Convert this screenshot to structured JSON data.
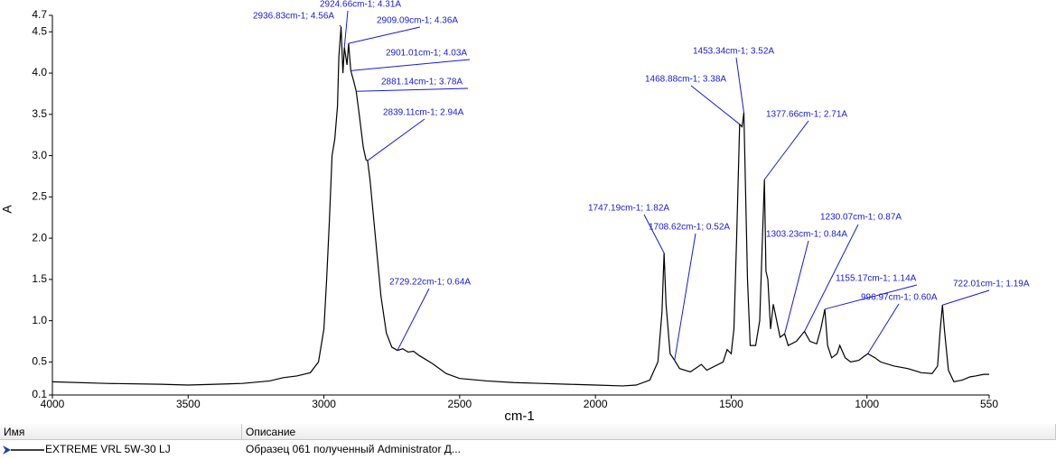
{
  "chart_data": {
    "type": "line",
    "x_label": "cm-1",
    "y_label": "A",
    "xlim": [
      4000,
      550
    ],
    "ylim": [
      0.1,
      4.7
    ],
    "xticks": [
      4000,
      3500,
      3000,
      2500,
      2000,
      1500,
      1000,
      550
    ],
    "yticks": [
      0.1,
      0.5,
      {
        "value": 1,
        "label": "1.0"
      },
      1.5,
      {
        "value": 2,
        "label": "2.0"
      },
      2.5,
      {
        "value": 3,
        "label": "3.0"
      },
      3.5,
      {
        "value": 4,
        "label": "4.0"
      },
      4.5,
      4.7
    ],
    "color": "#000000",
    "x": [
      4000,
      3800,
      3600,
      3500,
      3400,
      3300,
      3200,
      3150,
      3100,
      3050,
      3020,
      3000,
      2990,
      2980,
      2970,
      2960,
      2950,
      2945,
      2936.83,
      2930,
      2924.66,
      2915,
      2909.09,
      2901.01,
      2890,
      2881.14,
      2870,
      2855,
      2845,
      2839.11,
      2830,
      2810,
      2790,
      2770,
      2750,
      2729.22,
      2710,
      2690,
      2670,
      2650,
      2600,
      2550,
      2500,
      2400,
      2300,
      2200,
      2100,
      2000,
      1900,
      1850,
      1800,
      1770,
      1755,
      1747.19,
      1740,
      1725,
      1708.62,
      1690,
      1650,
      1610,
      1590,
      1530,
      1515,
      1500,
      1490,
      1480,
      1468.88,
      1460,
      1453.34,
      1440,
      1430,
      1410,
      1395,
      1385,
      1377.66,
      1372,
      1365,
      1355,
      1345,
      1320,
      1303.23,
      1290,
      1260,
      1230.07,
      1210,
      1185,
      1170,
      1155.17,
      1145,
      1130,
      1110,
      1100,
      1080,
      1060,
      1030,
      1010,
      996.97,
      970,
      950,
      900,
      850,
      800,
      760,
      740,
      730,
      722.01,
      715,
      700,
      680,
      650,
      620,
      600,
      570,
      550
    ],
    "values": [
      0.26,
      0.24,
      0.23,
      0.22,
      0.23,
      0.24,
      0.27,
      0.31,
      0.33,
      0.37,
      0.5,
      0.9,
      1.5,
      2.2,
      3.0,
      3.2,
      3.6,
      4.2,
      4.56,
      4.0,
      4.31,
      4.1,
      4.36,
      4.03,
      3.9,
      3.78,
      3.5,
      3.1,
      2.95,
      2.94,
      2.7,
      2.0,
      1.3,
      0.85,
      0.68,
      0.64,
      0.66,
      0.62,
      0.63,
      0.58,
      0.48,
      0.36,
      0.3,
      0.27,
      0.25,
      0.24,
      0.23,
      0.22,
      0.21,
      0.22,
      0.28,
      0.5,
      1.1,
      1.82,
      1.2,
      0.6,
      0.52,
      0.42,
      0.38,
      0.47,
      0.4,
      0.5,
      0.65,
      0.6,
      0.9,
      2.0,
      3.38,
      3.35,
      3.52,
      1.5,
      0.7,
      0.7,
      1.0,
      2.0,
      2.71,
      1.6,
      1.5,
      0.9,
      1.2,
      0.8,
      0.84,
      0.7,
      0.75,
      0.87,
      0.75,
      0.72,
      0.9,
      1.14,
      0.7,
      0.55,
      0.6,
      0.7,
      0.55,
      0.5,
      0.52,
      0.57,
      0.6,
      0.55,
      0.5,
      0.45,
      0.42,
      0.37,
      0.36,
      0.45,
      0.9,
      1.19,
      0.9,
      0.4,
      0.26,
      0.28,
      0.32,
      0.33,
      0.35,
      0.35
    ],
    "annotations": [
      {
        "label": "2936.83cm-1; 4.56A",
        "x": 2936.83,
        "y": 4.56
      },
      {
        "label": "2924.66cm-1; 4.31A",
        "x": 2924.66,
        "y": 4.31
      },
      {
        "label": "2909.09cm-1; 4.36A",
        "x": 2909.09,
        "y": 4.36
      },
      {
        "label": "2901.01cm-1; 4.03A",
        "x": 2901.01,
        "y": 4.03
      },
      {
        "label": "2881.14cm-1; 3.78A",
        "x": 2881.14,
        "y": 3.78
      },
      {
        "label": "2839.11cm-1; 2.94A",
        "x": 2839.11,
        "y": 2.94
      },
      {
        "label": "2729.22cm-1; 0.64A",
        "x": 2729.22,
        "y": 0.64
      },
      {
        "label": "1747.19cm-1; 1.82A",
        "x": 1747.19,
        "y": 1.82
      },
      {
        "label": "1708.62cm-1; 0.52A",
        "x": 1708.62,
        "y": 0.52
      },
      {
        "label": "1468.88cm-1; 3.38A",
        "x": 1468.88,
        "y": 3.38
      },
      {
        "label": "1453.34cm-1; 3.52A",
        "x": 1453.34,
        "y": 3.52
      },
      {
        "label": "1377.66cm-1; 2.71A",
        "x": 1377.66,
        "y": 2.71
      },
      {
        "label": "1303.23cm-1; 0.84A",
        "x": 1303.23,
        "y": 0.84
      },
      {
        "label": "1230.07cm-1; 0.87A",
        "x": 1230.07,
        "y": 0.87
      },
      {
        "label": "1155.17cm-1; 1.14A",
        "x": 1155.17,
        "y": 1.14
      },
      {
        "label": "996.97cm-1; 0.60A",
        "x": 996.97,
        "y": 0.6
      },
      {
        "label": "722.01cm-1; 1.19A",
        "x": 722.01,
        "y": 1.19
      }
    ]
  },
  "table": {
    "columns": [
      "Имя",
      "Описание"
    ],
    "rows": [
      [
        "EXTREME VRL 5W-30 LJ",
        "Образец 061 полученный Administrator Д..."
      ]
    ]
  }
}
